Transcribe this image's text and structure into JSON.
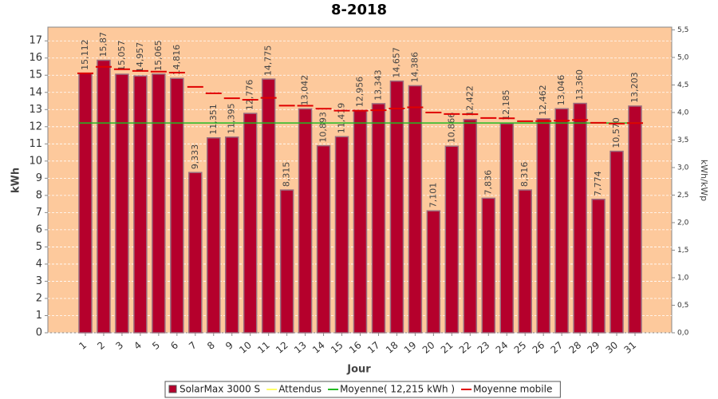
{
  "chart_data": {
    "type": "bar",
    "title": "8-2018",
    "xlabel": "Jour",
    "ylabel": "kWh",
    "y2label": "kWh/kWp",
    "categories": [
      "1",
      "2",
      "3",
      "4",
      "5",
      "6",
      "7",
      "8",
      "9",
      "10",
      "11",
      "12",
      "13",
      "14",
      "15",
      "16",
      "17",
      "18",
      "19",
      "20",
      "21",
      "22",
      "23",
      "24",
      "25",
      "26",
      "27",
      "28",
      "29",
      "30",
      "31"
    ],
    "series": [
      {
        "name": "SolarMax 3000 S",
        "color": "#b5002c",
        "values": [
          15.112,
          15.87,
          15.057,
          14.957,
          15.065,
          14.816,
          9.333,
          11.351,
          11.395,
          12.776,
          14.775,
          8.315,
          13.042,
          10.893,
          11.419,
          12.956,
          13.343,
          14.657,
          14.386,
          7.101,
          10.866,
          12.422,
          7.836,
          12.185,
          8.316,
          12.462,
          13.046,
          13.36,
          7.774,
          10.57,
          13.203
        ],
        "value_labels": [
          "15,112",
          "15,87",
          "15,057",
          "14,957",
          "15,065",
          "14,816",
          "9,333",
          "11,351",
          "11,395",
          "12,776",
          "14,775",
          "8,315",
          "13,042",
          "10,893",
          "11,419",
          "12,956",
          "13,343",
          "14,657",
          "14,386",
          "7,101",
          "10,866",
          "12,422",
          "7,836",
          "12,185",
          "8,316",
          "12,462",
          "13,046",
          "13,360",
          "7,774",
          "10,570",
          "13,203"
        ]
      },
      {
        "name": "Moyenne mobile",
        "color": "#e00000",
        "values": [
          15.11,
          15.49,
          15.35,
          15.25,
          15.21,
          15.15,
          14.32,
          13.95,
          13.66,
          13.57,
          13.68,
          13.23,
          13.22,
          13.05,
          12.94,
          12.94,
          12.96,
          13.06,
          13.13,
          12.83,
          12.74,
          12.73,
          12.51,
          12.49,
          12.32,
          12.33,
          12.35,
          12.39,
          12.23,
          12.18,
          12.21
        ]
      }
    ],
    "expected": {
      "name": "Attendus",
      "color": "#ffff66"
    },
    "average": {
      "name": "Moyenne( 12,215 kWh )",
      "value": 12.215,
      "color": "#22bb22"
    },
    "ylim": [
      0,
      17.8
    ],
    "yticks": [
      0,
      1,
      2,
      3,
      4,
      5,
      6,
      7,
      8,
      9,
      10,
      11,
      12,
      13,
      14,
      15,
      16,
      17
    ],
    "y2lim": [
      0,
      5.55
    ],
    "y2ticks": [
      {
        "value": 0,
        "label": "0,0"
      },
      {
        "value": 0.5,
        "label": "0,5"
      },
      {
        "value": 1,
        "label": "1,0"
      },
      {
        "value": 1.5,
        "label": "1,5"
      },
      {
        "value": 2,
        "label": "2,0"
      },
      {
        "value": 2.5,
        "label": "2,5"
      },
      {
        "value": 3,
        "label": "3,0"
      },
      {
        "value": 3.5,
        "label": "3,5"
      },
      {
        "value": 4,
        "label": "4,0"
      },
      {
        "value": 4.5,
        "label": "4,5"
      },
      {
        "value": 5,
        "label": "5,0"
      },
      {
        "value": 5.5,
        "label": "5,5"
      }
    ],
    "grid": true,
    "background": "#fdc99c"
  }
}
